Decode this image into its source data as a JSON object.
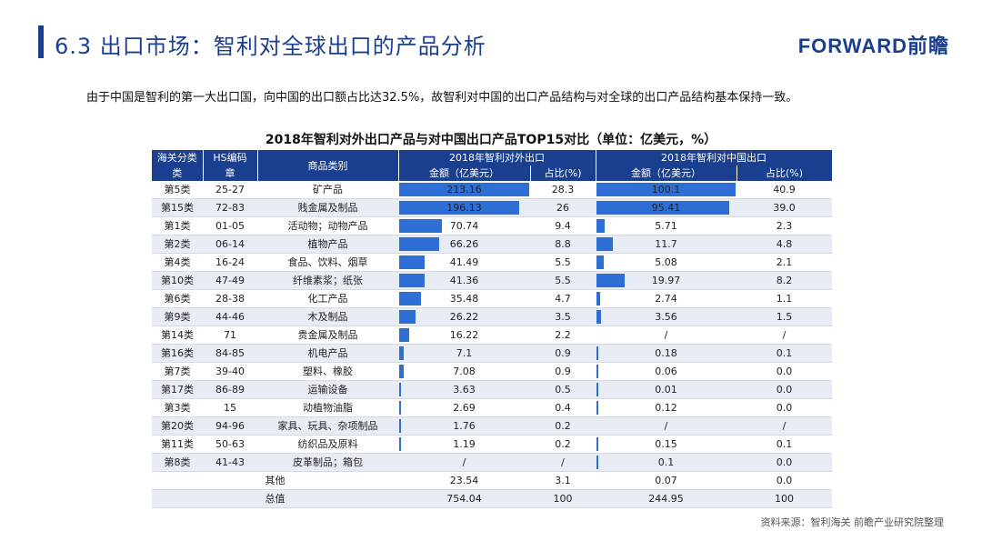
{
  "header": {
    "title": "6.3  出口市场：智利对全球出口的产品分析",
    "logo": "FORWARD前瞻"
  },
  "intro": "由于中国是智利的第一大出口国，向中国的出口额占比达32.5%，故智利对中国的出口产品结构与对全球的出口产品结构基本保持一致。",
  "table_title": "2018年智利对外出口产品与对中国出口产品TOP15对比（单位：亿美元，%）",
  "table_header": {
    "customs_category": "海关分类",
    "customs_category_2": "类",
    "hs_code": "HS编码",
    "hs_code_2": "章",
    "product": "商品类别",
    "global_group": "2018年智利对外出口",
    "china_group": "2018年智利对中国出口",
    "amount": "金额（亿美元）",
    "share": "占比(%)",
    "amount_cn": "金额（亿美元）",
    "share_cn": "占比(%)"
  },
  "rows": [
    {
      "cat": "第5类",
      "hs": "25-27",
      "product": "矿产品",
      "amt": "213.16",
      "share": "28.3",
      "amt_cn": "100.1",
      "share_cn": "40.9"
    },
    {
      "cat": "第15类",
      "hs": "72-83",
      "product": "贱金属及制品",
      "amt": "196.13",
      "share": "26",
      "amt_cn": "95.41",
      "share_cn": "39.0"
    },
    {
      "cat": "第1类",
      "hs": "01-05",
      "product": "活动物；动物产品",
      "amt": "70.74",
      "share": "9.4",
      "amt_cn": "5.71",
      "share_cn": "2.3"
    },
    {
      "cat": "第2类",
      "hs": "06-14",
      "product": "植物产品",
      "amt": "66.26",
      "share": "8.8",
      "amt_cn": "11.7",
      "share_cn": "4.8"
    },
    {
      "cat": "第4类",
      "hs": "16-24",
      "product": "食品、饮料、烟草",
      "amt": "41.49",
      "share": "5.5",
      "amt_cn": "5.08",
      "share_cn": "2.1"
    },
    {
      "cat": "第10类",
      "hs": "47-49",
      "product": "纤维素浆；纸张",
      "amt": "41.36",
      "share": "5.5",
      "amt_cn": "19.97",
      "share_cn": "8.2"
    },
    {
      "cat": "第6类",
      "hs": "28-38",
      "product": "化工产品",
      "amt": "35.48",
      "share": "4.7",
      "amt_cn": "2.74",
      "share_cn": "1.1"
    },
    {
      "cat": "第9类",
      "hs": "44-46",
      "product": "木及制品",
      "amt": "26.22",
      "share": "3.5",
      "amt_cn": "3.56",
      "share_cn": "1.5"
    },
    {
      "cat": "第14类",
      "hs": "71",
      "product": "贵金属及制品",
      "amt": "16.22",
      "share": "2.2",
      "amt_cn": "/",
      "share_cn": "/"
    },
    {
      "cat": "第16类",
      "hs": "84-85",
      "product": "机电产品",
      "amt": "7.1",
      "share": "0.9",
      "amt_cn": "0.18",
      "share_cn": "0.1"
    },
    {
      "cat": "第7类",
      "hs": "39-40",
      "product": "塑料、橡胶",
      "amt": "7.08",
      "share": "0.9",
      "amt_cn": "0.06",
      "share_cn": "0.0"
    },
    {
      "cat": "第17类",
      "hs": "86-89",
      "product": "运输设备",
      "amt": "3.63",
      "share": "0.5",
      "amt_cn": "0.01",
      "share_cn": "0.0"
    },
    {
      "cat": "第3类",
      "hs": "15",
      "product": "动植物油脂",
      "amt": "2.69",
      "share": "0.4",
      "amt_cn": "0.12",
      "share_cn": "0.0"
    },
    {
      "cat": "第20类",
      "hs": "94-96",
      "product": "家具、玩具、杂项制品",
      "amt": "1.76",
      "share": "0.2",
      "amt_cn": "/",
      "share_cn": "/"
    },
    {
      "cat": "第11类",
      "hs": "50-63",
      "product": "纺织品及原料",
      "amt": "1.19",
      "share": "0.2",
      "amt_cn": "0.15",
      "share_cn": "0.1"
    },
    {
      "cat": "第8类",
      "hs": "41-43",
      "product": "皮革制品；箱包",
      "amt": "/",
      "share": "/",
      "amt_cn": "0.1",
      "share_cn": "0.0"
    }
  ],
  "other_row": {
    "label": "其他",
    "amt": "23.54",
    "share": "3.1",
    "amt_cn": "0.07",
    "share_cn": "0.0"
  },
  "total_row": {
    "label": "总值",
    "amt": "754.04",
    "share": "100",
    "amt_cn": "244.95",
    "share_cn": "100"
  },
  "bar_color": "#2e6fd6",
  "header_color": "#1b3f8f",
  "source": "资料来源：智利海关  前瞻产业研究院整理"
}
